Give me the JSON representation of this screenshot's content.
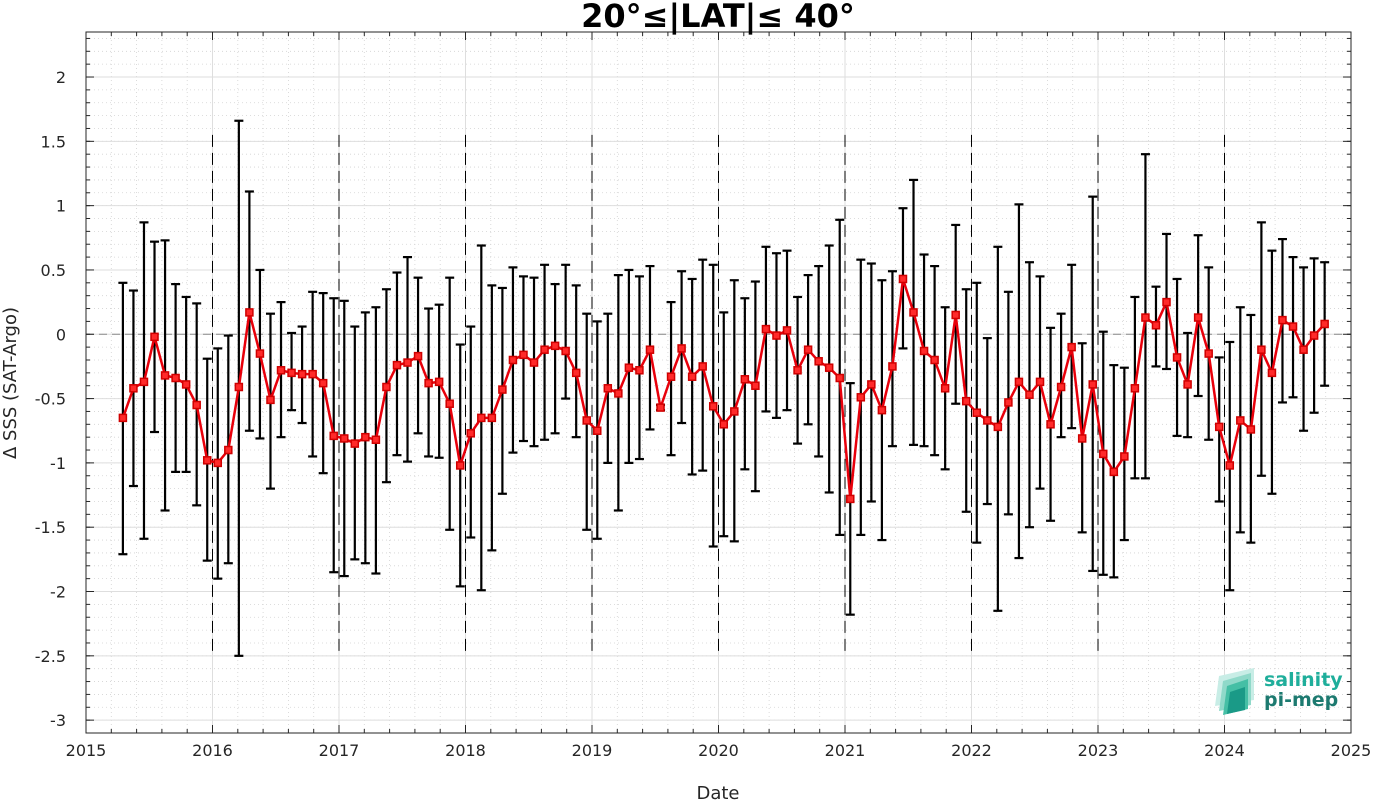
{
  "chart_data": {
    "type": "line",
    "title": "20°≤|LAT|≤ 40°",
    "xlabel": "Date",
    "ylabel": "Δ SSS (SAT-Argo)",
    "xlim": [
      2015,
      2025
    ],
    "ylim": [
      -3.1,
      2.35
    ],
    "x_ticks": [
      "2015",
      "2016",
      "2017",
      "2018",
      "2019",
      "2020",
      "2021",
      "2022",
      "2023",
      "2024",
      "2025"
    ],
    "y_ticks": [
      "2",
      "1.5",
      "1",
      "0.5",
      "0",
      "-0.5",
      "-1",
      "-1.5",
      "-2",
      "-2.5",
      "-3"
    ],
    "y_tick_values": [
      2,
      1.5,
      1,
      0.5,
      0,
      -0.5,
      -1,
      -1.5,
      -2,
      -2.5,
      -3
    ],
    "year_separators": [
      2016,
      2017,
      2018,
      2019,
      2020,
      2021,
      2022,
      2023,
      2024
    ],
    "zero_line": 0,
    "grid": true,
    "minor_grid": true,
    "series": [
      {
        "color": "#e8000b",
        "x": [
          "2015-04",
          "2015-05",
          "2015-06",
          "2015-07",
          "2015-08",
          "2015-09",
          "2015-10",
          "2015-11",
          "2015-12",
          "2016-01",
          "2016-02",
          "2016-03",
          "2016-04",
          "2016-05",
          "2016-06",
          "2016-07",
          "2016-08",
          "2016-09",
          "2016-10",
          "2016-11",
          "2016-12",
          "2017-01",
          "2017-02",
          "2017-03",
          "2017-04",
          "2017-05",
          "2017-06",
          "2017-07",
          "2017-08",
          "2017-09",
          "2017-10",
          "2017-11",
          "2017-12",
          "2018-01",
          "2018-02",
          "2018-03",
          "2018-04",
          "2018-05",
          "2018-06",
          "2018-07",
          "2018-08",
          "2018-09",
          "2018-10",
          "2018-11",
          "2018-12",
          "2019-01",
          "2019-02",
          "2019-03",
          "2019-04",
          "2019-05",
          "2019-06",
          "2019-07",
          "2019-08",
          "2019-09",
          "2019-10",
          "2019-11",
          "2019-12",
          "2020-01",
          "2020-02",
          "2020-03",
          "2020-04",
          "2020-05",
          "2020-06",
          "2020-07",
          "2020-08",
          "2020-09",
          "2020-10",
          "2020-11",
          "2020-12",
          "2021-01",
          "2021-02",
          "2021-03",
          "2021-04",
          "2021-05",
          "2021-06",
          "2021-07",
          "2021-08",
          "2021-09",
          "2021-10",
          "2021-11",
          "2021-12",
          "2022-01",
          "2022-02",
          "2022-03",
          "2022-04",
          "2022-05",
          "2022-06",
          "2022-07",
          "2022-08",
          "2022-09",
          "2022-10",
          "2022-11",
          "2022-12",
          "2023-01",
          "2023-02",
          "2023-03",
          "2023-04",
          "2023-05",
          "2023-06",
          "2023-07",
          "2023-08",
          "2023-09",
          "2023-10",
          "2023-11",
          "2023-12",
          "2024-01",
          "2024-02",
          "2024-03",
          "2024-04",
          "2024-05",
          "2024-06",
          "2024-07",
          "2024-08",
          "2024-09",
          "2024-10"
        ],
        "y": [
          -0.65,
          -0.42,
          -0.37,
          -0.02,
          -0.32,
          -0.34,
          -0.39,
          -0.55,
          -0.98,
          -1.0,
          -0.9,
          -0.41,
          0.17,
          -0.15,
          -0.51,
          -0.28,
          -0.3,
          -0.31,
          -0.31,
          -0.38,
          -0.79,
          -0.81,
          -0.85,
          -0.8,
          -0.82,
          -0.41,
          -0.24,
          -0.22,
          -0.17,
          -0.38,
          -0.37,
          -0.54,
          -1.02,
          -0.77,
          -0.65,
          -0.65,
          -0.43,
          -0.2,
          -0.16,
          -0.22,
          -0.12,
          -0.09,
          -0.13,
          -0.3,
          -0.67,
          -0.75,
          -0.42,
          -0.46,
          -0.26,
          -0.28,
          -0.12,
          -0.57,
          -0.33,
          -0.11,
          -0.33,
          -0.25,
          -0.56,
          -0.7,
          -0.6,
          -0.35,
          -0.4,
          0.04,
          -0.01,
          0.03,
          -0.28,
          -0.12,
          -0.21,
          -0.26,
          -0.34,
          -1.28,
          -0.49,
          -0.39,
          -0.59,
          -0.25,
          0.43,
          0.17,
          -0.13,
          -0.2,
          -0.42,
          0.15,
          -0.52,
          -0.61,
          -0.67,
          -0.72,
          -0.53,
          -0.37,
          -0.47,
          -0.37,
          -0.7,
          -0.41,
          -0.1,
          -0.81,
          -0.39,
          -0.93,
          -1.07,
          -0.95,
          -0.42,
          0.13,
          0.07,
          0.25,
          -0.18,
          -0.39,
          0.13,
          -0.15,
          -0.72,
          -1.02,
          -0.67,
          -0.74,
          -0.12,
          -0.3,
          0.11,
          0.06,
          -0.12,
          -0.01,
          0.08
        ],
        "err_low": [
          -1.71,
          -1.18,
          -1.59,
          -0.76,
          -1.37,
          -1.07,
          -1.07,
          -1.33,
          -1.76,
          -1.9,
          -1.78,
          -2.5,
          -0.75,
          -0.81,
          -1.2,
          -0.8,
          -0.59,
          -0.69,
          -0.95,
          -1.08,
          -1.85,
          -1.88,
          -1.75,
          -1.78,
          -1.86,
          -1.15,
          -0.94,
          -0.99,
          -0.77,
          -0.95,
          -0.96,
          -1.52,
          -1.96,
          -1.58,
          -1.99,
          -1.68,
          -1.24,
          -0.92,
          -0.83,
          -0.87,
          -0.82,
          -0.77,
          -0.5,
          -0.8,
          -1.52,
          -1.59,
          -1.0,
          -1.37,
          -1.0,
          -0.97,
          -0.74,
          -0.59,
          -0.94,
          -0.69,
          -1.09,
          -1.06,
          -1.65,
          -1.57,
          -1.61,
          -1.05,
          -1.22,
          -0.6,
          -0.65,
          -0.59,
          -0.85,
          -0.7,
          -0.95,
          -1.23,
          -1.56,
          -2.18,
          -1.56,
          -1.3,
          -1.6,
          -0.87,
          -0.11,
          -0.86,
          -0.87,
          -0.94,
          -1.05,
          -0.54,
          -1.38,
          -1.62,
          -1.32,
          -2.15,
          -1.4,
          -1.74,
          -1.5,
          -1.2,
          -1.45,
          -0.8,
          -0.73,
          -1.54,
          -1.84,
          -1.87,
          -1.89,
          -1.6,
          -1.12,
          -1.12,
          -0.25,
          -0.27,
          -0.79,
          -0.8,
          -0.48,
          -0.82,
          -1.3,
          -1.99,
          -1.54,
          -1.62,
          -1.1,
          -1.24,
          -0.53,
          -0.49,
          -0.75,
          -0.61,
          -0.4
        ],
        "err_high": [
          0.4,
          0.34,
          0.87,
          0.72,
          0.73,
          0.39,
          0.29,
          0.24,
          -0.19,
          -0.11,
          -0.01,
          1.66,
          1.11,
          0.5,
          0.16,
          0.25,
          0.01,
          0.06,
          0.33,
          0.32,
          0.28,
          0.26,
          0.06,
          0.17,
          0.21,
          0.35,
          0.48,
          0.6,
          0.44,
          0.2,
          0.23,
          0.44,
          -0.08,
          0.06,
          0.69,
          0.38,
          0.36,
          0.52,
          0.45,
          0.44,
          0.54,
          0.39,
          0.54,
          0.38,
          0.16,
          0.1,
          0.16,
          0.46,
          0.5,
          0.45,
          0.53,
          -0.55,
          0.25,
          0.49,
          0.43,
          0.58,
          0.54,
          0.17,
          0.42,
          0.28,
          0.41,
          0.68,
          0.63,
          0.65,
          0.29,
          0.46,
          0.53,
          0.69,
          0.89,
          -0.38,
          0.58,
          0.55,
          0.42,
          0.49,
          0.98,
          1.2,
          0.62,
          0.53,
          0.21,
          0.85,
          0.35,
          0.4,
          -0.03,
          0.68,
          0.33,
          1.01,
          0.56,
          0.45,
          0.05,
          0.16,
          0.54,
          -0.07,
          1.07,
          0.02,
          -0.24,
          -0.26,
          0.29,
          1.4,
          0.37,
          0.78,
          0.43,
          0.01,
          0.77,
          0.52,
          -0.18,
          -0.06,
          0.21,
          0.15,
          0.87,
          0.65,
          0.74,
          0.6,
          0.52,
          0.59,
          0.56
        ]
      }
    ]
  },
  "logo": {
    "line1": "salinity",
    "line2": "pi-mep",
    "color1": "#1fae9b",
    "color2": "#1d7a70"
  }
}
